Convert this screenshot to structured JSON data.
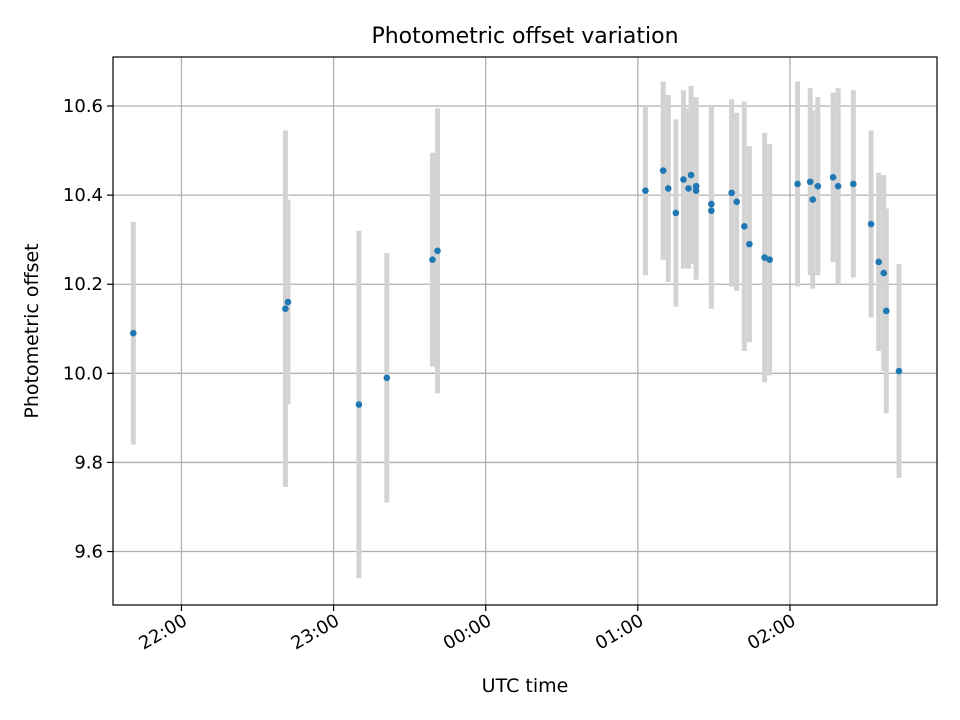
{
  "chart_data": {
    "type": "scatter",
    "title": "Photometric offset variation",
    "xlabel": "UTC time",
    "ylabel": "Photometric offset",
    "xlim": [
      "21:33",
      "02:58"
    ],
    "ylim": [
      9.48,
      10.71
    ],
    "grid": true,
    "x_ticks": [
      "22:00",
      "23:00",
      "00:00",
      "01:00",
      "02:00"
    ],
    "y_ticks": [
      "9.6",
      "9.8",
      "10.0",
      "10.2",
      "10.4",
      "10.6"
    ],
    "colors": {
      "points": "#1f77b4",
      "errorbars": "#d3d3d3",
      "grid": "#b0b0b0"
    },
    "points": [
      {
        "x": "21:41",
        "y": 10.09,
        "err": 0.25
      },
      {
        "x": "22:41",
        "y": 10.145,
        "err": 0.4
      },
      {
        "x": "22:42",
        "y": 10.16,
        "err": 0.23
      },
      {
        "x": "23:10",
        "y": 9.93,
        "err": 0.39
      },
      {
        "x": "23:21",
        "y": 9.99,
        "err": 0.28
      },
      {
        "x": "23:39",
        "y": 10.255,
        "err": 0.24
      },
      {
        "x": "23:41",
        "y": 10.275,
        "err": 0.32
      },
      {
        "x": "01:03",
        "y": 10.41,
        "err": 0.19
      },
      {
        "x": "01:10",
        "y": 10.455,
        "err": 0.2
      },
      {
        "x": "01:12",
        "y": 10.415,
        "err": 0.21
      },
      {
        "x": "01:15",
        "y": 10.36,
        "err": 0.21
      },
      {
        "x": "01:18",
        "y": 10.435,
        "err": 0.2
      },
      {
        "x": "01:20",
        "y": 10.415,
        "err": 0.18
      },
      {
        "x": "01:21",
        "y": 10.445,
        "err": 0.2
      },
      {
        "x": "01:23",
        "y": 10.41,
        "err": 0.2
      },
      {
        "x": "01:23",
        "y": 10.42,
        "err": 0.2
      },
      {
        "x": "01:29",
        "y": 10.365,
        "err": 0.22
      },
      {
        "x": "01:29",
        "y": 10.38,
        "err": 0.22
      },
      {
        "x": "01:37",
        "y": 10.405,
        "err": 0.21
      },
      {
        "x": "01:39",
        "y": 10.385,
        "err": 0.2
      },
      {
        "x": "01:42",
        "y": 10.33,
        "err": 0.28
      },
      {
        "x": "01:44",
        "y": 10.29,
        "err": 0.22
      },
      {
        "x": "01:50",
        "y": 10.26,
        "err": 0.28
      },
      {
        "x": "01:52",
        "y": 10.255,
        "err": 0.26
      },
      {
        "x": "02:03",
        "y": 10.425,
        "err": 0.23
      },
      {
        "x": "02:08",
        "y": 10.43,
        "err": 0.21
      },
      {
        "x": "02:09",
        "y": 10.39,
        "err": 0.2
      },
      {
        "x": "02:11",
        "y": 10.42,
        "err": 0.2
      },
      {
        "x": "02:17",
        "y": 10.44,
        "err": 0.19
      },
      {
        "x": "02:19",
        "y": 10.42,
        "err": 0.22
      },
      {
        "x": "02:25",
        "y": 10.425,
        "err": 0.21
      },
      {
        "x": "02:32",
        "y": 10.335,
        "err": 0.21
      },
      {
        "x": "02:35",
        "y": 10.25,
        "err": 0.2
      },
      {
        "x": "02:37",
        "y": 10.225,
        "err": 0.22
      },
      {
        "x": "02:38",
        "y": 10.14,
        "err": 0.23
      },
      {
        "x": "02:43",
        "y": 10.005,
        "err": 0.24
      }
    ]
  }
}
